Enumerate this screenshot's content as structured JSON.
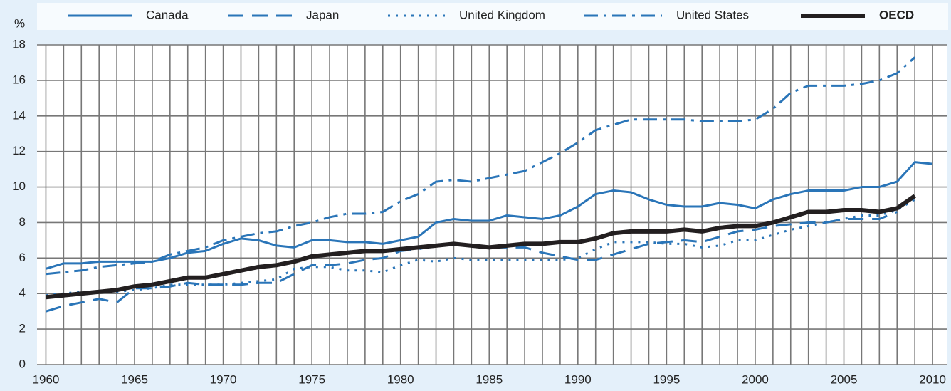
{
  "chart_data": {
    "type": "line",
    "y_label": "%",
    "x": [
      1960,
      1961,
      1962,
      1963,
      1964,
      1965,
      1966,
      1967,
      1968,
      1969,
      1970,
      1971,
      1972,
      1973,
      1974,
      1975,
      1976,
      1977,
      1978,
      1979,
      1980,
      1981,
      1982,
      1983,
      1984,
      1985,
      1986,
      1987,
      1988,
      1989,
      1990,
      1991,
      1992,
      1993,
      1994,
      1995,
      1996,
      1997,
      1998,
      1999,
      2000,
      2001,
      2002,
      2003,
      2004,
      2005,
      2006,
      2007,
      2008,
      2009,
      2010
    ],
    "xlim": [
      1959.5,
      2010.8
    ],
    "xticks": [
      1960,
      1965,
      1970,
      1975,
      1980,
      1985,
      1990,
      1995,
      2000,
      2005,
      2010
    ],
    "ylim": [
      0,
      18
    ],
    "yticks": [
      0,
      2,
      4,
      6,
      8,
      10,
      12,
      14,
      16,
      18
    ],
    "grid": true,
    "series": [
      {
        "name": "Canada",
        "color": "#2a75b8",
        "linestyle": "solid",
        "linewidth": 3,
        "values": [
          5.4,
          5.7,
          5.7,
          5.8,
          5.8,
          5.8,
          5.8,
          6.0,
          6.3,
          6.4,
          6.8,
          7.1,
          7.0,
          6.7,
          6.6,
          7.0,
          7.0,
          6.9,
          6.9,
          6.8,
          7.0,
          7.2,
          8.0,
          8.2,
          8.1,
          8.1,
          8.4,
          8.3,
          8.2,
          8.4,
          8.9,
          9.6,
          9.8,
          9.7,
          9.3,
          9.0,
          8.9,
          8.9,
          9.1,
          9.0,
          8.8,
          9.3,
          9.6,
          9.8,
          9.8,
          9.8,
          10.0,
          10.0,
          10.3,
          11.4,
          11.3
        ]
      },
      {
        "name": "Japan",
        "color": "#2a75b8",
        "linestyle": "dashed",
        "linewidth": 3,
        "values": [
          3.0,
          3.3,
          3.5,
          3.7,
          3.5,
          4.3,
          4.3,
          4.4,
          4.6,
          4.5,
          4.5,
          4.5,
          4.6,
          4.6,
          5.1,
          5.6,
          5.6,
          5.7,
          5.9,
          6.0,
          6.4,
          6.5,
          6.7,
          6.8,
          6.7,
          6.6,
          6.6,
          6.6,
          6.3,
          6.1,
          5.9,
          5.9,
          6.2,
          6.5,
          6.8,
          6.9,
          7.0,
          6.9,
          7.2,
          7.5,
          7.6,
          7.8,
          7.9,
          8.0,
          8.0,
          8.2,
          8.2,
          8.2,
          8.6,
          null,
          null
        ]
      },
      {
        "name": "United Kingdom",
        "color": "#2a75b8",
        "linestyle": "dotted",
        "linewidth": 3,
        "values": [
          3.9,
          4.0,
          4.1,
          4.1,
          4.1,
          4.2,
          4.3,
          4.5,
          4.5,
          4.5,
          4.5,
          4.6,
          4.7,
          4.8,
          5.4,
          5.5,
          5.5,
          5.3,
          5.3,
          5.2,
          5.6,
          5.9,
          5.8,
          6.0,
          5.9,
          5.9,
          5.9,
          5.9,
          5.9,
          5.9,
          6.0,
          6.5,
          6.9,
          6.9,
          6.9,
          6.8,
          6.8,
          6.6,
          6.7,
          7.0,
          7.0,
          7.3,
          7.6,
          7.8,
          8.0,
          8.2,
          8.4,
          8.4,
          8.7,
          9.3,
          null
        ]
      },
      {
        "name": "United States",
        "color": "#2a75b8",
        "linestyle": "dashdot",
        "linewidth": 3,
        "values": [
          5.1,
          5.2,
          5.3,
          5.5,
          5.6,
          5.7,
          5.8,
          6.2,
          6.4,
          6.6,
          7.0,
          7.2,
          7.4,
          7.5,
          7.8,
          8.0,
          8.3,
          8.5,
          8.5,
          8.6,
          9.2,
          9.6,
          10.3,
          10.4,
          10.3,
          10.5,
          10.7,
          10.9,
          11.4,
          11.9,
          12.5,
          13.2,
          13.5,
          13.8,
          13.8,
          13.8,
          13.8,
          13.7,
          13.7,
          13.7,
          13.8,
          14.4,
          15.3,
          15.7,
          15.7,
          15.7,
          15.8,
          16.0,
          16.4,
          17.3,
          null
        ]
      },
      {
        "name": "OECD",
        "color": "#231f20",
        "linestyle": "solid",
        "linewidth": 6,
        "values": [
          3.8,
          3.9,
          4.0,
          4.1,
          4.2,
          4.4,
          4.5,
          4.7,
          4.9,
          4.9,
          5.1,
          5.3,
          5.5,
          5.6,
          5.8,
          6.1,
          6.2,
          6.3,
          6.4,
          6.4,
          6.5,
          6.6,
          6.7,
          6.8,
          6.7,
          6.6,
          6.7,
          6.8,
          6.8,
          6.9,
          6.9,
          7.1,
          7.4,
          7.5,
          7.5,
          7.5,
          7.6,
          7.5,
          7.7,
          7.8,
          7.8,
          8.0,
          8.3,
          8.6,
          8.6,
          8.7,
          8.7,
          8.6,
          8.8,
          9.5,
          null
        ]
      }
    ]
  }
}
